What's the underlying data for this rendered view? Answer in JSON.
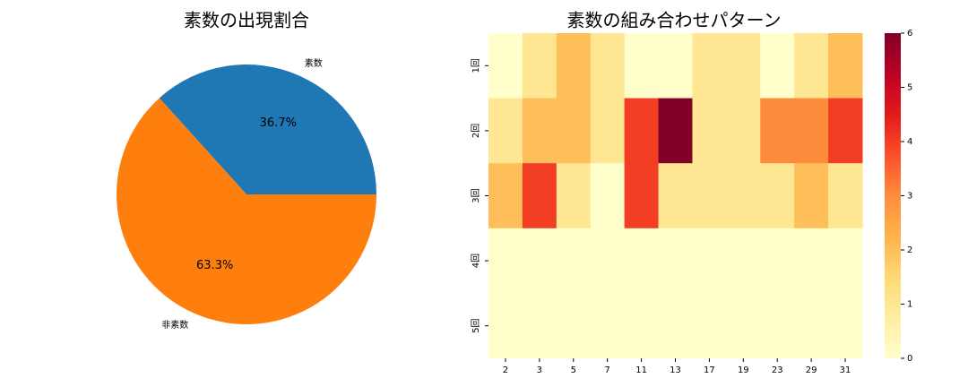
{
  "chart_data": [
    {
      "type": "pie",
      "title": "素数の出現割合",
      "categories": [
        "素数",
        "非素数"
      ],
      "values": [
        36.7,
        63.3
      ],
      "value_labels": [
        "36.7%",
        "63.3%"
      ],
      "colors": [
        "#1f77b4",
        "#ff7f0e"
      ]
    },
    {
      "type": "heatmap",
      "title": "素数の組み合わせパターン",
      "categories": [
        "2",
        "3",
        "5",
        "7",
        "11",
        "13",
        "17",
        "19",
        "23",
        "29",
        "31"
      ],
      "rows": [
        "1回",
        "2回",
        "3回",
        "4回",
        "5回"
      ],
      "values": [
        [
          0,
          1,
          2,
          1,
          0,
          0,
          1,
          1,
          0,
          1,
          2
        ],
        [
          1,
          2,
          2,
          1,
          4,
          6,
          1,
          1,
          3,
          3,
          4
        ],
        [
          2,
          4,
          1,
          0,
          4,
          1,
          1,
          1,
          1,
          2,
          1
        ],
        [
          0,
          0,
          0,
          0,
          0,
          0,
          0,
          0,
          0,
          0,
          0
        ],
        [
          0,
          0,
          0,
          0,
          0,
          0,
          0,
          0,
          0,
          0,
          0
        ]
      ],
      "colormap": "YlOrRd",
      "clim": [
        0,
        6
      ],
      "cticks": [
        0,
        1,
        2,
        3,
        4,
        5,
        6
      ]
    }
  ]
}
